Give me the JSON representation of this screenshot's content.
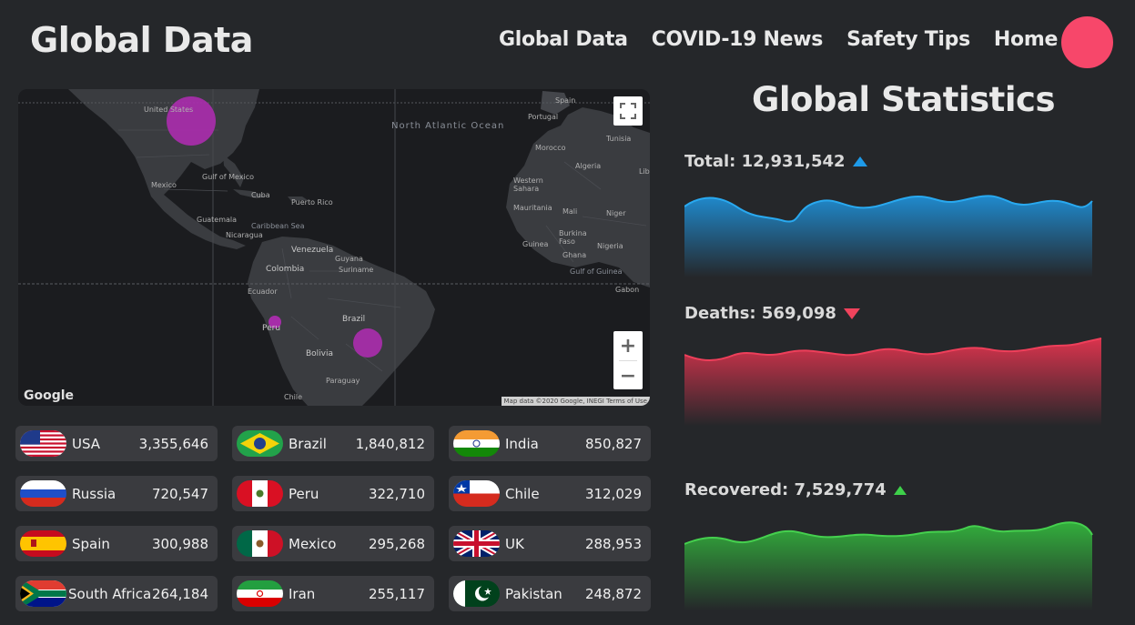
{
  "header": {
    "brand": "Global Data",
    "nav": [
      "Global Data",
      "COVID-19 News",
      "Safety Tips",
      "Home"
    ]
  },
  "map": {
    "labels": {
      "us": "United States",
      "ocean": "North Atlantic Ocean",
      "portugal": "Portugal",
      "spain": "Spain",
      "morocco": "Morocco",
      "algeria": "Algeria",
      "tunisia": "Tunisia",
      "mexico": "Mexico",
      "cuba": "Cuba",
      "puerto_rico": "Puerto Rico",
      "guatemala": "Guatemala",
      "nicaragua": "Nicaragua",
      "caribbean": "Caribbean Sea",
      "gulf_mexico": "Gulf of Mexico",
      "venezuela": "Venezuela",
      "colombia": "Colombia",
      "ecuador": "Ecuador",
      "peru": "Peru",
      "brazil": "Brazil",
      "bolivia": "Bolivia",
      "paraguay": "Paraguay",
      "chile": "Chile",
      "guyana": "Guyana",
      "suriname": "Suriname",
      "western_sahara": "Western Sahara",
      "mauritania": "Mauritania",
      "mali": "Mali",
      "niger": "Niger",
      "nigeria": "Nigeria",
      "burkina": "Burkina Faso",
      "guinea": "Guinea",
      "ghana": "Ghana",
      "gulf_guinea": "Gulf of Guinea",
      "gabon": "Gabon",
      "libya": "Lib"
    },
    "google": "Google",
    "attribution": "Map data ©2020 Google, INEGI   Terms of Use",
    "zoom_in": "+",
    "zoom_out": "−"
  },
  "countries": [
    {
      "name": "USA",
      "value": "3,355,646",
      "flag": "usa"
    },
    {
      "name": "Brazil",
      "value": "1,840,812",
      "flag": "brazil"
    },
    {
      "name": "India",
      "value": "850,827",
      "flag": "india"
    },
    {
      "name": "Russia",
      "value": "720,547",
      "flag": "russia"
    },
    {
      "name": "Peru",
      "value": "322,710",
      "flag": "peru"
    },
    {
      "name": "Chile",
      "value": "312,029",
      "flag": "chile"
    },
    {
      "name": "Spain",
      "value": "300,988",
      "flag": "spain"
    },
    {
      "name": "Mexico",
      "value": "295,268",
      "flag": "mexico"
    },
    {
      "name": "UK",
      "value": "288,953",
      "flag": "uk"
    },
    {
      "name": "South Africa",
      "value": "264,184",
      "flag": "southafrica"
    },
    {
      "name": "Iran",
      "value": "255,117",
      "flag": "iran"
    },
    {
      "name": "Pakistan",
      "value": "248,872",
      "flag": "pakistan"
    }
  ],
  "stats": {
    "title": "Global Statistics",
    "total": {
      "label": "Total: 12,931,542",
      "trend": "up",
      "color": "#1e9ae8"
    },
    "deaths": {
      "label": "Deaths: 569,098",
      "trend": "down",
      "color": "#f0435c"
    },
    "recovered": {
      "label": "Recovered: 7,529,774",
      "trend": "up",
      "color": "#3ed04a"
    }
  }
}
